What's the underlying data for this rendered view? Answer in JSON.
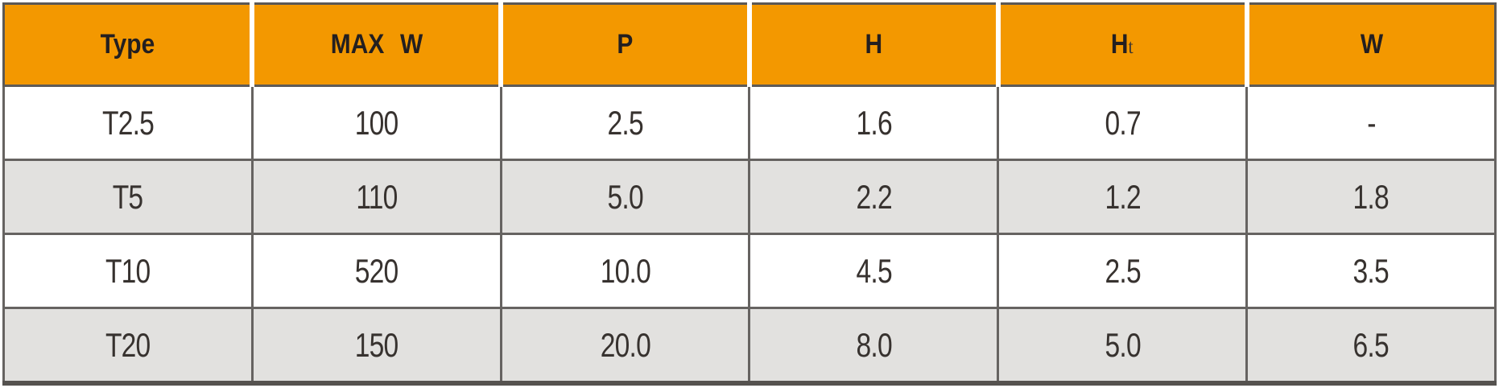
{
  "colors": {
    "header_bg": "#F39800",
    "header_separator": "#FFFFFF",
    "row_bg": "#FFFFFF",
    "row_alt_bg": "#E2E1DF",
    "border_inner": "#666361",
    "border_outer": "#5B5855",
    "header_text": "#231F20",
    "body_text": "#37322F"
  },
  "table": {
    "header": [
      {
        "label": "Type",
        "sub": ""
      },
      {
        "label": "MAX W",
        "sub": ""
      },
      {
        "label": "P",
        "sub": ""
      },
      {
        "label": "H",
        "sub": ""
      },
      {
        "label": "H",
        "sub": "t"
      },
      {
        "label": "W",
        "sub": ""
      }
    ],
    "rows": [
      {
        "cells": [
          "T2.5",
          "100",
          "2.5",
          "1.6",
          "0.7",
          "-"
        ]
      },
      {
        "cells": [
          "T5",
          "110",
          "5.0",
          "2.2",
          "1.2",
          "1.8"
        ]
      },
      {
        "cells": [
          "T10",
          "520",
          "10.0",
          "4.5",
          "2.5",
          "3.5"
        ]
      },
      {
        "cells": [
          "T20",
          "150",
          "20.0",
          "8.0",
          "5.0",
          "6.5"
        ]
      }
    ]
  },
  "chart_data": {
    "type": "table",
    "columns": [
      "Type",
      "MAX W",
      "P",
      "H",
      "Ht",
      "W"
    ],
    "rows": [
      [
        "T2.5",
        "100",
        "2.5",
        "1.6",
        "0.7",
        "-"
      ],
      [
        "T5",
        "110",
        "5.0",
        "2.2",
        "1.2",
        "1.8"
      ],
      [
        "T10",
        "520",
        "10.0",
        "4.5",
        "2.5",
        "3.5"
      ],
      [
        "T20",
        "150",
        "20.0",
        "8.0",
        "5.0",
        "6.5"
      ]
    ]
  }
}
